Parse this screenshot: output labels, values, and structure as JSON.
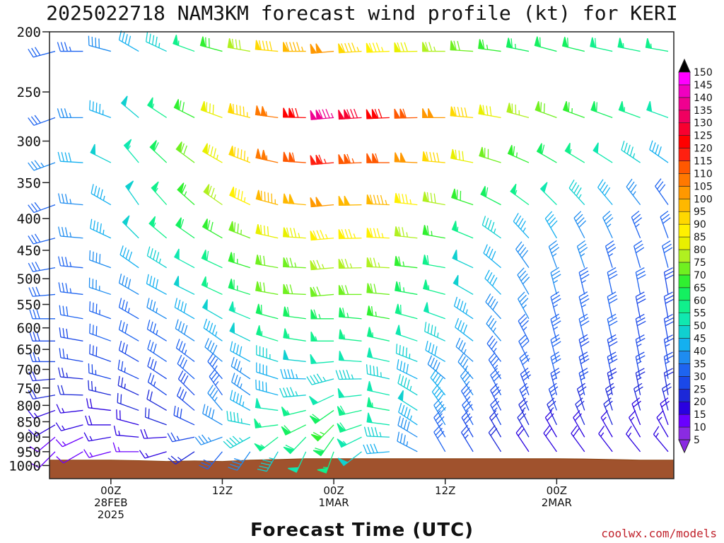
{
  "chart_data": {
    "type": "wind-barb time-height",
    "title": "2025022718 NAM3KM forecast wind profile (kt) for KERI",
    "xlabel": "Forecast Time (UTC)",
    "credit": "coolwx.com/models",
    "units": "kt",
    "y_axis": {
      "type": "log-pressure",
      "ticks": [
        200,
        250,
        300,
        350,
        400,
        450,
        500,
        550,
        600,
        650,
        700,
        750,
        800,
        850,
        900,
        950,
        1000
      ],
      "range": [
        200,
        1050
      ]
    },
    "x_axis": {
      "start_hour": 18,
      "end_hour": 84,
      "hour_step": 3,
      "ticks": [
        {
          "hour": 24,
          "lines": [
            "00Z",
            "28FEB",
            "2025"
          ]
        },
        {
          "hour": 36,
          "lines": [
            "12Z"
          ]
        },
        {
          "hour": 48,
          "lines": [
            "00Z",
            "1MAR"
          ]
        },
        {
          "hour": 60,
          "lines": [
            "12Z"
          ]
        },
        {
          "hour": 72,
          "lines": [
            "00Z",
            "2MAR"
          ]
        }
      ]
    },
    "colorbar": {
      "levels": [
        5,
        10,
        15,
        20,
        25,
        30,
        35,
        40,
        45,
        50,
        55,
        60,
        65,
        70,
        75,
        80,
        85,
        90,
        95,
        100,
        105,
        110,
        115,
        120,
        125,
        130,
        135,
        140,
        145,
        150
      ],
      "colors": [
        "#8a2be2",
        "#6a00ff",
        "#2a00e0",
        "#1c28d8",
        "#1a48e8",
        "#1e64f0",
        "#1e8cf0",
        "#14b0f0",
        "#10d0d0",
        "#10e8b0",
        "#10f08c",
        "#14f060",
        "#30f030",
        "#70f020",
        "#b0f020",
        "#e8f000",
        "#fff000",
        "#ffd800",
        "#ffb800",
        "#ff9800",
        "#ff7800",
        "#ff5800",
        "#ff2010",
        "#ff0000",
        "#f80030",
        "#f00060",
        "#f00090",
        "#f000c0",
        "#ff00ff"
      ]
    },
    "levels_hpa": [
      215,
      275,
      325,
      380,
      430,
      480,
      530,
      580,
      630,
      680,
      725,
      770,
      815,
      860,
      900,
      950
    ],
    "ground_pressure_hpa": [
      980,
      980,
      980,
      982,
      985,
      983,
      985,
      980,
      978,
      975,
      975,
      975,
      975,
      975,
      975,
      975,
      975,
      975,
      975,
      976,
      978,
      980,
      980
    ],
    "speed_profiles": [
      {
        "hour": 18,
        "speeds": [
          30,
          30,
          35,
          30,
          30,
          30,
          30,
          30,
          28,
          25,
          22,
          20,
          15,
          15,
          12,
          10
        ]
      },
      {
        "hour": 30,
        "speeds": [
          45,
          55,
          60,
          55,
          55,
          45,
          40,
          35,
          33,
          30,
          28,
          25,
          22,
          20,
          18,
          15
        ]
      },
      {
        "hour": 42,
        "speeds": [
          90,
          105,
          105,
          95,
          80,
          72,
          70,
          60,
          55,
          45,
          40,
          40,
          50,
          55,
          55,
          45
        ]
      },
      {
        "hour": 48,
        "speeds": [
          100,
          135,
          115,
          100,
          85,
          75,
          70,
          63,
          55,
          50,
          45,
          50,
          60,
          65,
          62,
          55
        ]
      },
      {
        "hour": 54,
        "speeds": [
          85,
          120,
          110,
          95,
          85,
          75,
          70,
          65,
          55,
          50,
          45,
          50,
          55,
          50,
          45,
          40
        ]
      },
      {
        "hour": 66,
        "speeds": [
          65,
          80,
          70,
          60,
          45,
          40,
          40,
          38,
          35,
          33,
          33,
          30,
          28,
          25,
          22,
          20
        ]
      },
      {
        "hour": 84,
        "speeds": [
          55,
          50,
          40,
          32,
          30,
          30,
          28,
          28,
          28,
          25,
          25,
          22,
          20,
          18,
          15,
          15
        ]
      }
    ],
    "direction_profiles": [
      {
        "hour": 18,
        "dirs": [
          255,
          250,
          250,
          250,
          255,
          260,
          265,
          270,
          270,
          270,
          265,
          260,
          250,
          240,
          230,
          225
        ]
      },
      {
        "hour": 27,
        "dirs": [
          300,
          310,
          320,
          325,
          315,
          305,
          300,
          300,
          300,
          300,
          295,
          295,
          290,
          285,
          275,
          270
        ]
      },
      {
        "hour": 36,
        "dirs": [
          285,
          290,
          300,
          305,
          300,
          295,
          295,
          300,
          305,
          310,
          320,
          325,
          320,
          300,
          250,
          220
        ]
      },
      {
        "hour": 48,
        "dirs": [
          265,
          265,
          265,
          265,
          265,
          265,
          265,
          270,
          270,
          265,
          255,
          245,
          235,
          225,
          215,
          200
        ]
      },
      {
        "hour": 60,
        "dirs": [
          270,
          270,
          275,
          280,
          280,
          280,
          285,
          290,
          295,
          300,
          310,
          320,
          325,
          330,
          330,
          330
        ]
      },
      {
        "hour": 72,
        "dirs": [
          285,
          290,
          300,
          315,
          330,
          340,
          345,
          345,
          345,
          345,
          345,
          345,
          340,
          335,
          330,
          325
        ]
      },
      {
        "hour": 84,
        "dirs": [
          280,
          290,
          305,
          325,
          340,
          345,
          350,
          350,
          350,
          350,
          350,
          350,
          345,
          340,
          330,
          320
        ]
      }
    ],
    "grid": false,
    "colorbar_position": "right"
  }
}
